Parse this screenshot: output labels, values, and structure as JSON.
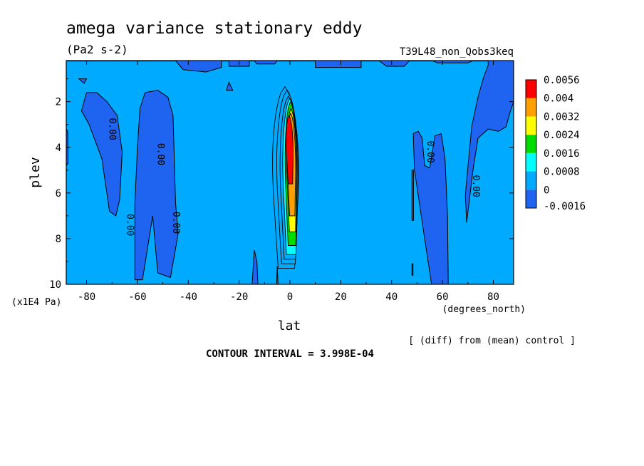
{
  "chart_data": {
    "type": "heatmap",
    "title": "amega variance stationary eddy",
    "units": "(Pa2 s-2)",
    "experiment": "T39L48_non_Qobs3keq",
    "xlabel": "lat",
    "x_units": "(degrees_north)",
    "ylabel": "plev",
    "y_units": "(x1E4 Pa)",
    "xlim": [
      -88,
      88
    ],
    "ylim": [
      10,
      0.2
    ],
    "x_ticks": [
      -80,
      -60,
      -40,
      -20,
      0,
      20,
      40,
      60,
      80
    ],
    "x_tick_labels": [
      "-80",
      "-60",
      "-40",
      "-20",
      "0",
      "20",
      "40",
      "60",
      "80"
    ],
    "y_ticks": [
      2,
      4,
      6,
      8,
      10
    ],
    "y_tick_labels": [
      "2",
      "4",
      "6",
      "8",
      "10"
    ],
    "levels": [
      -0.0016,
      0,
      0.0008,
      0.0016,
      0.0024,
      0.0032,
      0.004,
      0.0056
    ],
    "legend_labels": [
      "0.0056",
      "0.004",
      "0.0032",
      "0.0024",
      "0.0016",
      "0.0008",
      "0",
      "-0.0016"
    ],
    "colors": {
      "background": "#00aaff",
      "negative": "#1e64f0",
      "cyan": "#00ffff",
      "green": "#00dc00",
      "yellow": "#ffff00",
      "orange": "#ffa000",
      "red": "#ff0000",
      "contour": "#000000"
    },
    "contour_labels": [
      {
        "text": "0.00",
        "lat": -70,
        "plev": 3.2
      },
      {
        "text": "0.00",
        "lat": -51,
        "plev": 4.3
      },
      {
        "text": "0.00",
        "lat": -63,
        "plev": 7.4
      },
      {
        "text": "0.00",
        "lat": -45,
        "plev": 7.3
      },
      {
        "text": "0.00",
        "lat": 55,
        "plev": 4.2
      },
      {
        "text": "0.00",
        "lat": 73,
        "plev": 5.7
      }
    ],
    "contour_interval_text": "CONTOUR INTERVAL = 3.998E-04",
    "footnote": "[ (diff) from (mean) control ]"
  }
}
